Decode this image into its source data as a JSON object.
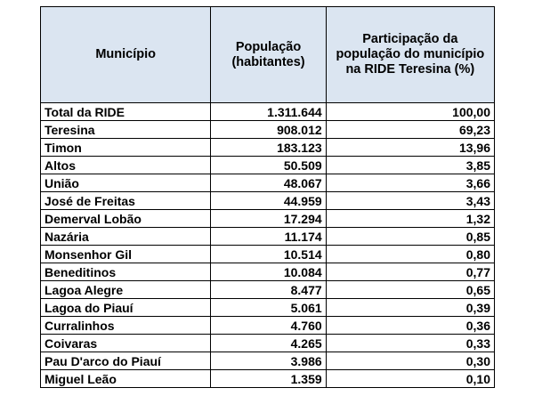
{
  "table": {
    "headers": {
      "municipio": "Município",
      "populacao": "População (habitantes)",
      "participacao": "Participação da população do município na RIDE Teresina (%)"
    },
    "total": {
      "municipio": "Total da RIDE",
      "populacao": "1.311.644",
      "participacao": "100,00"
    },
    "rows": [
      {
        "municipio": "Teresina",
        "populacao": "908.012",
        "participacao": "69,23"
      },
      {
        "municipio": "Timon",
        "populacao": "183.123",
        "participacao": "13,96"
      },
      {
        "municipio": "Altos",
        "populacao": "50.509",
        "participacao": "3,85"
      },
      {
        "municipio": "União",
        "populacao": "48.067",
        "participacao": "3,66"
      },
      {
        "municipio": "José de Freitas",
        "populacao": "44.959",
        "participacao": "3,43"
      },
      {
        "municipio": "Demerval Lobão",
        "populacao": "17.294",
        "participacao": "1,32"
      },
      {
        "municipio": "Nazária",
        "populacao": "11.174",
        "participacao": "0,85"
      },
      {
        "municipio": "Monsenhor Gil",
        "populacao": "10.514",
        "participacao": "0,80"
      },
      {
        "municipio": "Beneditinos",
        "populacao": "10.084",
        "participacao": "0,77"
      },
      {
        "municipio": "Lagoa Alegre",
        "populacao": "8.477",
        "participacao": "0,65"
      },
      {
        "municipio": "Lagoa do Piauí",
        "populacao": "5.061",
        "participacao": "0,39"
      },
      {
        "municipio": "Curralinhos",
        "populacao": "4.760",
        "participacao": "0,36"
      },
      {
        "municipio": "Coivaras",
        "populacao": "4.265",
        "participacao": "0,33"
      },
      {
        "municipio": "Pau D'arco do Piauí",
        "populacao": "3.986",
        "participacao": "0,30"
      },
      {
        "municipio": "Miguel Leão",
        "populacao": "1.359",
        "participacao": "0,10"
      }
    ]
  },
  "colors": {
    "header_bg": "#dbe5f1",
    "total_text": "#e26b0a",
    "border": "#000000"
  }
}
